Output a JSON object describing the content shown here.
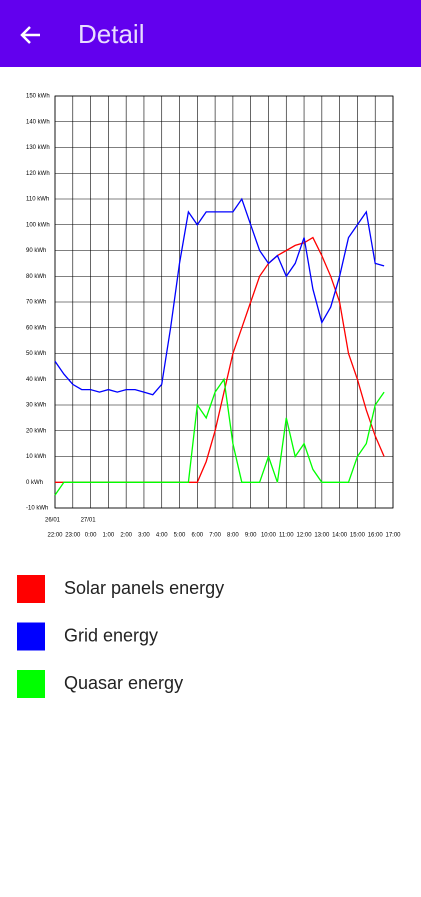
{
  "app_bar": {
    "title": "Detail"
  },
  "chart_data": {
    "type": "line",
    "x": [
      "22:00",
      "22:30",
      "23:00",
      "23:30",
      "0:00",
      "0:30",
      "1:00",
      "1:30",
      "2:00",
      "2:30",
      "3:00",
      "3:30",
      "4:00",
      "4:30",
      "5:00",
      "5:30",
      "6:00",
      "6:30",
      "7:00",
      "7:30",
      "8:00",
      "8:30",
      "9:00",
      "9:30",
      "10:00",
      "10:30",
      "11:00",
      "11:30",
      "12:00",
      "12:30",
      "13:00",
      "13:30",
      "14:00",
      "14:30",
      "15:00",
      "15:30",
      "16:00",
      "16:30"
    ],
    "series": [
      {
        "name": "Solar panels energy",
        "color": "#ff0000",
        "values": [
          0,
          0,
          0,
          0,
          0,
          0,
          0,
          0,
          0,
          0,
          0,
          0,
          0,
          0,
          0,
          0,
          0,
          8,
          20,
          35,
          50,
          60,
          70,
          80,
          85,
          88,
          90,
          92,
          93,
          95,
          88,
          80,
          70,
          50,
          40,
          28,
          18,
          10
        ]
      },
      {
        "name": "Grid energy",
        "color": "#0000ff",
        "values": [
          47,
          42,
          38,
          36,
          36,
          35,
          36,
          35,
          36,
          36,
          35,
          34,
          38,
          60,
          85,
          105,
          100,
          105,
          105,
          105,
          105,
          110,
          100,
          90,
          85,
          88,
          80,
          85,
          95,
          75,
          62,
          68,
          80,
          95,
          100,
          105,
          85,
          84
        ]
      },
      {
        "name": "Quasar energy",
        "color": "#00ff00",
        "values": [
          -5,
          0,
          0,
          0,
          0,
          0,
          0,
          0,
          0,
          0,
          0,
          0,
          0,
          0,
          0,
          0,
          30,
          25,
          35,
          40,
          15,
          0,
          0,
          0,
          10,
          0,
          25,
          10,
          15,
          5,
          0,
          0,
          0,
          0,
          10,
          15,
          30,
          35
        ]
      }
    ],
    "xticks": [
      "22:00",
      "23:00",
      "0:00",
      "1:00",
      "2:00",
      "3:00",
      "4:00",
      "5:00",
      "6:00",
      "7:00",
      "8:00",
      "9:00",
      "10:00",
      "11:00",
      "12:00",
      "13:00",
      "14:00",
      "15:00",
      "16:00",
      "17:00"
    ],
    "date_labels": [
      {
        "x": "22:00",
        "label": "26/01"
      },
      {
        "x": "0:00",
        "label": "27/01"
      }
    ],
    "ylim": [
      -10,
      150
    ],
    "yticks": [
      {
        "value": -10,
        "label": "-10 kWh"
      },
      {
        "value": 0,
        "label": "0 kWh"
      },
      {
        "value": 10,
        "label": "10 kWh"
      },
      {
        "value": 20,
        "label": "20 kWh"
      },
      {
        "value": 30,
        "label": "30 kWh"
      },
      {
        "value": 40,
        "label": "40 kWh"
      },
      {
        "value": 50,
        "label": "50 kWh"
      },
      {
        "value": 60,
        "label": "60 kWh"
      },
      {
        "value": 70,
        "label": "70 kWh"
      },
      {
        "value": 80,
        "label": "80 kWh"
      },
      {
        "value": 90,
        "label": "90 kWh"
      },
      {
        "value": 100,
        "label": "100 kWh"
      },
      {
        "value": 110,
        "label": "110 kWh"
      },
      {
        "value": 120,
        "label": "120 kWh"
      },
      {
        "value": 130,
        "label": "130 kWh"
      },
      {
        "value": 140,
        "label": "140 kWh"
      },
      {
        "value": 150,
        "label": "150 kWh"
      }
    ],
    "grid": true
  }
}
